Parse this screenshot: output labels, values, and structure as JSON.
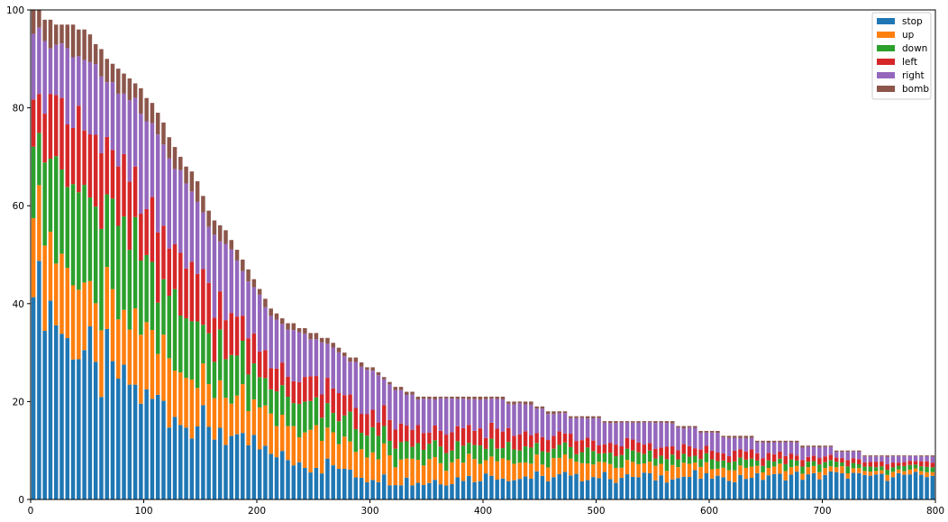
{
  "chart_data": {
    "type": "bar",
    "stacked": true,
    "xlim": [
      0,
      800
    ],
    "ylim": [
      0,
      100
    ],
    "xticks": [
      0,
      100,
      200,
      300,
      400,
      500,
      600,
      700,
      800
    ],
    "yticks": [
      0,
      20,
      40,
      60,
      80,
      100
    ],
    "xtick_labels": [
      "0",
      "100",
      "200",
      "300",
      "400",
      "500",
      "600",
      "700",
      "800"
    ],
    "ytick_labels": [
      "0",
      "20",
      "40",
      "60",
      "80",
      "100"
    ],
    "grid": false,
    "legend_position": "top-right",
    "series_order": [
      "stop",
      "up",
      "down",
      "left",
      "right",
      "bomb"
    ],
    "colors": {
      "stop": "#1f77b4",
      "up": "#ff7f0e",
      "down": "#2ca02c",
      "left": "#d62728",
      "right": "#9467bd",
      "bomb": "#8c564b"
    },
    "total_profile": [
      [
        0,
        100
      ],
      [
        8,
        100
      ],
      [
        12,
        98
      ],
      [
        30,
        97
      ],
      [
        48,
        96
      ],
      [
        58,
        93
      ],
      [
        68,
        90
      ],
      [
        80,
        87
      ],
      [
        92,
        85
      ],
      [
        104,
        82
      ],
      [
        114,
        78
      ],
      [
        126,
        73
      ],
      [
        138,
        68
      ],
      [
        150,
        64
      ],
      [
        160,
        57
      ],
      [
        176,
        54
      ],
      [
        186,
        49
      ],
      [
        198,
        45
      ],
      [
        210,
        40
      ],
      [
        220,
        37
      ],
      [
        230,
        36
      ],
      [
        240,
        35
      ],
      [
        260,
        33
      ],
      [
        276,
        30
      ],
      [
        292,
        28
      ],
      [
        300,
        27
      ],
      [
        310,
        26
      ],
      [
        320,
        23
      ],
      [
        335,
        22
      ],
      [
        345,
        21
      ],
      [
        360,
        21
      ],
      [
        380,
        21
      ],
      [
        400,
        21
      ],
      [
        440,
        20
      ],
      [
        460,
        18
      ],
      [
        490,
        17
      ],
      [
        520,
        16
      ],
      [
        560,
        16
      ],
      [
        600,
        14
      ],
      [
        620,
        13
      ],
      [
        660,
        12
      ],
      [
        700,
        11
      ],
      [
        720,
        10
      ],
      [
        750,
        9
      ],
      [
        800,
        9
      ]
    ],
    "share_profile": {
      "x": [
        0,
        50,
        100,
        150,
        200,
        250,
        300,
        350,
        400,
        450,
        500,
        550,
        600,
        650,
        700,
        750,
        800
      ],
      "stop": [
        0.45,
        0.3,
        0.26,
        0.24,
        0.24,
        0.21,
        0.18,
        0.17,
        0.22,
        0.24,
        0.28,
        0.3,
        0.32,
        0.38,
        0.45,
        0.55,
        0.55
      ],
      "up": [
        0.15,
        0.14,
        0.15,
        0.15,
        0.18,
        0.2,
        0.2,
        0.22,
        0.17,
        0.17,
        0.18,
        0.15,
        0.14,
        0.15,
        0.14,
        0.1,
        0.1
      ],
      "down": [
        0.15,
        0.2,
        0.18,
        0.18,
        0.16,
        0.15,
        0.15,
        0.14,
        0.13,
        0.14,
        0.13,
        0.13,
        0.12,
        0.12,
        0.12,
        0.1,
        0.1
      ],
      "left": [
        0.08,
        0.16,
        0.16,
        0.16,
        0.14,
        0.14,
        0.14,
        0.15,
        0.15,
        0.14,
        0.13,
        0.13,
        0.13,
        0.11,
        0.09,
        0.1,
        0.1
      ],
      "right": [
        0.12,
        0.15,
        0.2,
        0.22,
        0.24,
        0.27,
        0.3,
        0.3,
        0.31,
        0.28,
        0.26,
        0.27,
        0.26,
        0.21,
        0.17,
        0.13,
        0.13
      ],
      "bomb": [
        0.05,
        0.05,
        0.05,
        0.05,
        0.04,
        0.03,
        0.03,
        0.02,
        0.02,
        0.03,
        0.02,
        0.02,
        0.03,
        0.03,
        0.03,
        0.02,
        0.02
      ]
    },
    "bar_count": 160,
    "bar_width": 4.5
  },
  "legend": {
    "stop": "stop",
    "up": "up",
    "down": "down",
    "left": "left",
    "right": "right",
    "bomb": "bomb"
  }
}
